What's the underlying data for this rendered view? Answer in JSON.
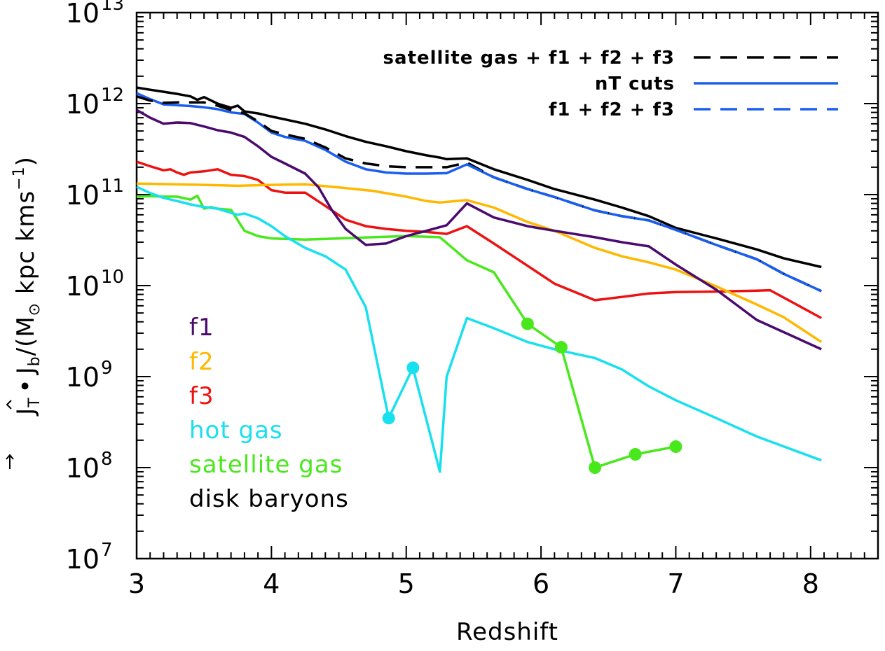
{
  "chart_data": {
    "type": "line",
    "title": "",
    "xlabel": "Redshift",
    "ylabel": "J_T · J_b / (M_⊙ kpc kms^-1)",
    "ylabel_parts": {
      "j_vec": "J",
      "sub_T": "T",
      "dot": "•",
      "j_hat": "J",
      "sub_b": "b",
      "unit_open": "/(M",
      "unit_rest": " kpc kms",
      "sup": "−1",
      "unit_close": ")"
    },
    "xlim": [
      3,
      8.5
    ],
    "ylim_exponent": [
      7,
      13
    ],
    "x_ticks": [
      "3",
      "4",
      "5",
      "6",
      "7",
      "8"
    ],
    "y_ticks": [
      {
        "base": "10",
        "exp": "7"
      },
      {
        "base": "10",
        "exp": "8"
      },
      {
        "base": "10",
        "exp": "9"
      },
      {
        "base": "10",
        "exp": "10"
      },
      {
        "base": "10",
        "exp": "11"
      },
      {
        "base": "10",
        "exp": "12"
      },
      {
        "base": "10",
        "exp": "13"
      }
    ],
    "legend_top": [
      {
        "label": "satellite gas + f1 + f2 + f3",
        "color": "#000000",
        "dash": "dashed"
      },
      {
        "label": "nT cuts",
        "color": "#1a5ef0",
        "dash": "solid"
      },
      {
        "label": "f1 + f2 + f3",
        "color": "#1a5ef0",
        "dash": "dashed"
      }
    ],
    "labels_left": [
      {
        "label": "f1",
        "color": "#4b0a6e"
      },
      {
        "label": "f2",
        "color": "#ffb800"
      },
      {
        "label": "f3",
        "color": "#ee1111"
      },
      {
        "label": "hot gas",
        "color": "#18e0ee"
      },
      {
        "label": "satellite gas",
        "color": "#49e81c"
      },
      {
        "label": "disk baryons",
        "color": "#000000"
      }
    ],
    "series": [
      {
        "name": "disk baryons",
        "color": "#000000",
        "dash": "solid",
        "x": [
          3.0,
          3.1,
          3.2,
          3.3,
          3.4,
          3.45,
          3.5,
          3.6,
          3.7,
          3.75,
          3.8,
          3.9,
          4.0,
          4.1,
          4.25,
          4.4,
          4.55,
          4.7,
          4.85,
          5.0,
          5.15,
          5.25,
          5.3,
          5.45,
          5.65,
          5.9,
          6.1,
          6.4,
          6.6,
          6.8,
          7.0,
          7.3,
          7.6,
          7.8,
          8.08
        ],
        "y": [
          1500000000000.0,
          1420000000000.0,
          1350000000000.0,
          1280000000000.0,
          1200000000000.0,
          1100000000000.0,
          1180000000000.0,
          1000000000000.0,
          900000000000.0,
          950000000000.0,
          820000000000.0,
          780000000000.0,
          720000000000.0,
          670000000000.0,
          600000000000.0,
          520000000000.0,
          440000000000.0,
          380000000000.0,
          340000000000.0,
          300000000000.0,
          270000000000.0,
          255000000000.0,
          245000000000.0,
          250000000000.0,
          190000000000.0,
          145000000000.0,
          115000000000.0,
          88000000000.0,
          72000000000.0,
          58000000000.0,
          43000000000.0,
          33000000000.0,
          25000000000.0,
          20000000000.0,
          16000000000.0
        ]
      },
      {
        "name": "satellite gas + f1 + f2 + f3",
        "color": "#000000",
        "dash": "dashed",
        "x": [
          3.0,
          3.1,
          3.2,
          3.3,
          3.4,
          3.5,
          3.6,
          3.7,
          3.8,
          3.9,
          4.0,
          4.1,
          4.25,
          4.4,
          4.55,
          4.7,
          4.85,
          5.0,
          5.15,
          5.3,
          5.45,
          5.65,
          5.9,
          6.1,
          6.4,
          6.6,
          6.8,
          7.0,
          7.3,
          7.6,
          7.8,
          8.08
        ],
        "y": [
          1200000000000.0,
          1080000000000.0,
          1020000000000.0,
          1030000000000.0,
          1030000000000.0,
          1030000000000.0,
          950000000000.0,
          850000000000.0,
          780000000000.0,
          640000000000.0,
          500000000000.0,
          460000000000.0,
          410000000000.0,
          330000000000.0,
          250000000000.0,
          220000000000.0,
          205000000000.0,
          200000000000.0,
          200000000000.0,
          200000000000.0,
          225000000000.0,
          155000000000.0,
          115000000000.0,
          94000000000.0,
          67000000000.0,
          58000000000.0,
          52000000000.0,
          41000000000.0,
          28000000000.0,
          19500000000.0,
          13500000000.0,
          8700000000.0
        ]
      },
      {
        "name": "nT cuts",
        "color": "#1a5ef0",
        "dash": "solid",
        "x": [
          3.0,
          3.1,
          3.2,
          3.3,
          3.4,
          3.5,
          3.6,
          3.7,
          3.8,
          3.9,
          4.0,
          4.1,
          4.25,
          4.4,
          4.55,
          4.7,
          4.85,
          5.0,
          5.15,
          5.3,
          5.45,
          5.65,
          5.9,
          6.1,
          6.4,
          6.6,
          6.8,
          7.0,
          7.3,
          7.6,
          7.8,
          8.08
        ],
        "y": [
          1300000000000.0,
          1120000000000.0,
          980000000000.0,
          960000000000.0,
          940000000000.0,
          910000000000.0,
          870000000000.0,
          800000000000.0,
          770000000000.0,
          620000000000.0,
          480000000000.0,
          430000000000.0,
          390000000000.0,
          310000000000.0,
          230000000000.0,
          190000000000.0,
          175000000000.0,
          170000000000.0,
          170000000000.0,
          172000000000.0,
          215000000000.0,
          155000000000.0,
          115000000000.0,
          94000000000.0,
          67000000000.0,
          58000000000.0,
          52000000000.0,
          41000000000.0,
          28000000000.0,
          19500000000.0,
          13500000000.0,
          8700000000.0
        ]
      },
      {
        "name": "f1 + f2 + f3",
        "color": "#1a5ef0",
        "dash": "dashed",
        "x": [
          5.45,
          5.65,
          5.9,
          6.1,
          6.4,
          6.6,
          6.8,
          7.0,
          7.3,
          7.6,
          7.8,
          8.08
        ],
        "y": [
          215000000000.0,
          155000000000.0,
          115000000000.0,
          94000000000.0,
          67000000000.0,
          58000000000.0,
          52000000000.0,
          41000000000.0,
          28000000000.0,
          19500000000.0,
          13500000000.0,
          8700000000.0
        ]
      },
      {
        "name": "f1",
        "color": "#4b0a6e",
        "dash": "solid",
        "x": [
          3.0,
          3.1,
          3.2,
          3.3,
          3.4,
          3.5,
          3.6,
          3.7,
          3.8,
          3.9,
          4.0,
          4.1,
          4.25,
          4.35,
          4.45,
          4.55,
          4.7,
          4.85,
          5.0,
          5.15,
          5.3,
          5.45,
          5.65,
          5.9,
          6.1,
          6.4,
          6.6,
          6.8,
          7.0,
          7.3,
          7.6,
          8.08
        ],
        "y": [
          850000000000.0,
          700000000000.0,
          600000000000.0,
          620000000000.0,
          610000000000.0,
          560000000000.0,
          510000000000.0,
          480000000000.0,
          430000000000.0,
          340000000000.0,
          260000000000.0,
          220000000000.0,
          170000000000.0,
          120000000000.0,
          67000000000.0,
          42000000000.0,
          28000000000.0,
          29000000000.0,
          35000000000.0,
          40000000000.0,
          46000000000.0,
          80000000000.0,
          56000000000.0,
          45000000000.0,
          40000000000.0,
          34000000000.0,
          30000000000.0,
          27000000000.0,
          17000000000.0,
          9000000000.0,
          4200000000.0,
          2000000000.0
        ]
      },
      {
        "name": "f2",
        "color": "#ffb800",
        "dash": "solid",
        "x": [
          3.0,
          3.5,
          3.75,
          4.0,
          4.25,
          4.5,
          4.75,
          5.0,
          5.15,
          5.25,
          5.45,
          5.65,
          5.9,
          6.1,
          6.4,
          6.6,
          6.8,
          7.0,
          7.3,
          7.6,
          7.8,
          8.08
        ],
        "y": [
          132000000000.0,
          128000000000.0,
          125000000000.0,
          128000000000.0,
          130000000000.0,
          120000000000.0,
          110000000000.0,
          95000000000.0,
          85000000000.0,
          82000000000.0,
          87000000000.0,
          72000000000.0,
          50000000000.0,
          40000000000.0,
          26000000000.0,
          21000000000.0,
          18000000000.0,
          15000000000.0,
          9800000000.0,
          6200000000.0,
          4500000000.0,
          2400000000.0
        ]
      },
      {
        "name": "f3",
        "color": "#ee1111",
        "dash": "solid",
        "x": [
          3.0,
          3.1,
          3.2,
          3.25,
          3.3,
          3.35,
          3.4,
          3.5,
          3.6,
          3.7,
          3.8,
          3.9,
          4.0,
          4.1,
          4.25,
          4.4,
          4.55,
          4.7,
          4.85,
          5.0,
          5.15,
          5.3,
          5.45,
          5.65,
          5.9,
          6.1,
          6.4,
          6.6,
          6.8,
          7.0,
          7.3,
          7.6,
          7.7,
          8.08
        ],
        "y": [
          230000000000.0,
          205000000000.0,
          185000000000.0,
          190000000000.0,
          175000000000.0,
          165000000000.0,
          175000000000.0,
          180000000000.0,
          190000000000.0,
          165000000000.0,
          160000000000.0,
          145000000000.0,
          112000000000.0,
          105000000000.0,
          105000000000.0,
          75000000000.0,
          53000000000.0,
          45000000000.0,
          42000000000.0,
          40000000000.0,
          39000000000.0,
          37000000000.0,
          45000000000.0,
          29000000000.0,
          16500000000.0,
          10500000000.0,
          6900000000.0,
          7500000000.0,
          8200000000.0,
          8500000000.0,
          8600000000.0,
          8800000000.0,
          8900000000.0,
          4400000000.0
        ]
      },
      {
        "name": "hot gas",
        "color": "#18e0ee",
        "dash": "solid",
        "x": [
          3.0,
          3.1,
          3.2,
          3.3,
          3.4,
          3.5,
          3.6,
          3.7,
          3.75,
          3.8,
          3.9,
          4.0,
          4.1,
          4.25,
          4.4,
          4.55,
          4.7,
          4.87,
          5.05,
          5.25,
          5.3,
          5.45,
          5.65,
          5.9,
          6.1,
          6.4,
          6.6,
          6.8,
          7.0,
          7.3,
          7.6,
          8.08
        ],
        "y": [
          122000000000.0,
          104000000000.0,
          92000000000.0,
          85000000000.0,
          78000000000.0,
          73000000000.0,
          70000000000.0,
          63000000000.0,
          60000000000.0,
          62000000000.0,
          55000000000.0,
          45000000000.0,
          35000000000.0,
          26000000000.0,
          21000000000.0,
          15000000000.0,
          5800000000.0,
          350000000.0,
          1250000000.0,
          90000000.0,
          1000000000.0,
          4400000000.0,
          3400000000.0,
          2400000000.0,
          2000000000.0,
          1600000000.0,
          1200000000.0,
          780000000.0,
          550000000.0,
          350000000.0,
          220000000.0,
          120000000.0
        ]
      },
      {
        "name": "satellite gas",
        "color": "#49e81c",
        "dash": "solid",
        "x": [
          3.0,
          3.1,
          3.2,
          3.3,
          3.4,
          3.45,
          3.5,
          3.55,
          3.6,
          3.7,
          3.8,
          3.9,
          4.0,
          4.25,
          4.5,
          4.75,
          5.0,
          5.25,
          5.45,
          5.65,
          5.9,
          6.15,
          6.4,
          6.7,
          7.0
        ],
        "y": [
          95000000000.0,
          96000000000.0,
          95000000000.0,
          95000000000.0,
          88000000000.0,
          97000000000.0,
          70000000000.0,
          73000000000.0,
          70000000000.0,
          68000000000.0,
          40000000000.0,
          35000000000.0,
          33000000000.0,
          32000000000.0,
          33000000000.0,
          34000000000.0,
          35000000000.0,
          34000000000.0,
          19000000000.0,
          14000000000.0,
          3800000000.0,
          2100000000.0,
          100000000.0,
          140000000.0,
          170000000.0
        ]
      }
    ],
    "markers": [
      {
        "series": "hot gas",
        "x": 4.87,
        "y": 350000000.0
      },
      {
        "series": "hot gas",
        "x": 5.05,
        "y": 1250000000.0
      },
      {
        "series": "satellite gas",
        "x": 5.9,
        "y": 3800000000.0
      },
      {
        "series": "satellite gas",
        "x": 6.15,
        "y": 2100000000.0
      },
      {
        "series": "satellite gas",
        "x": 6.4,
        "y": 100000000.0
      },
      {
        "series": "satellite gas",
        "x": 6.7,
        "y": 140000000.0
      },
      {
        "series": "satellite gas",
        "x": 7.0,
        "y": 170000000.0
      }
    ]
  }
}
